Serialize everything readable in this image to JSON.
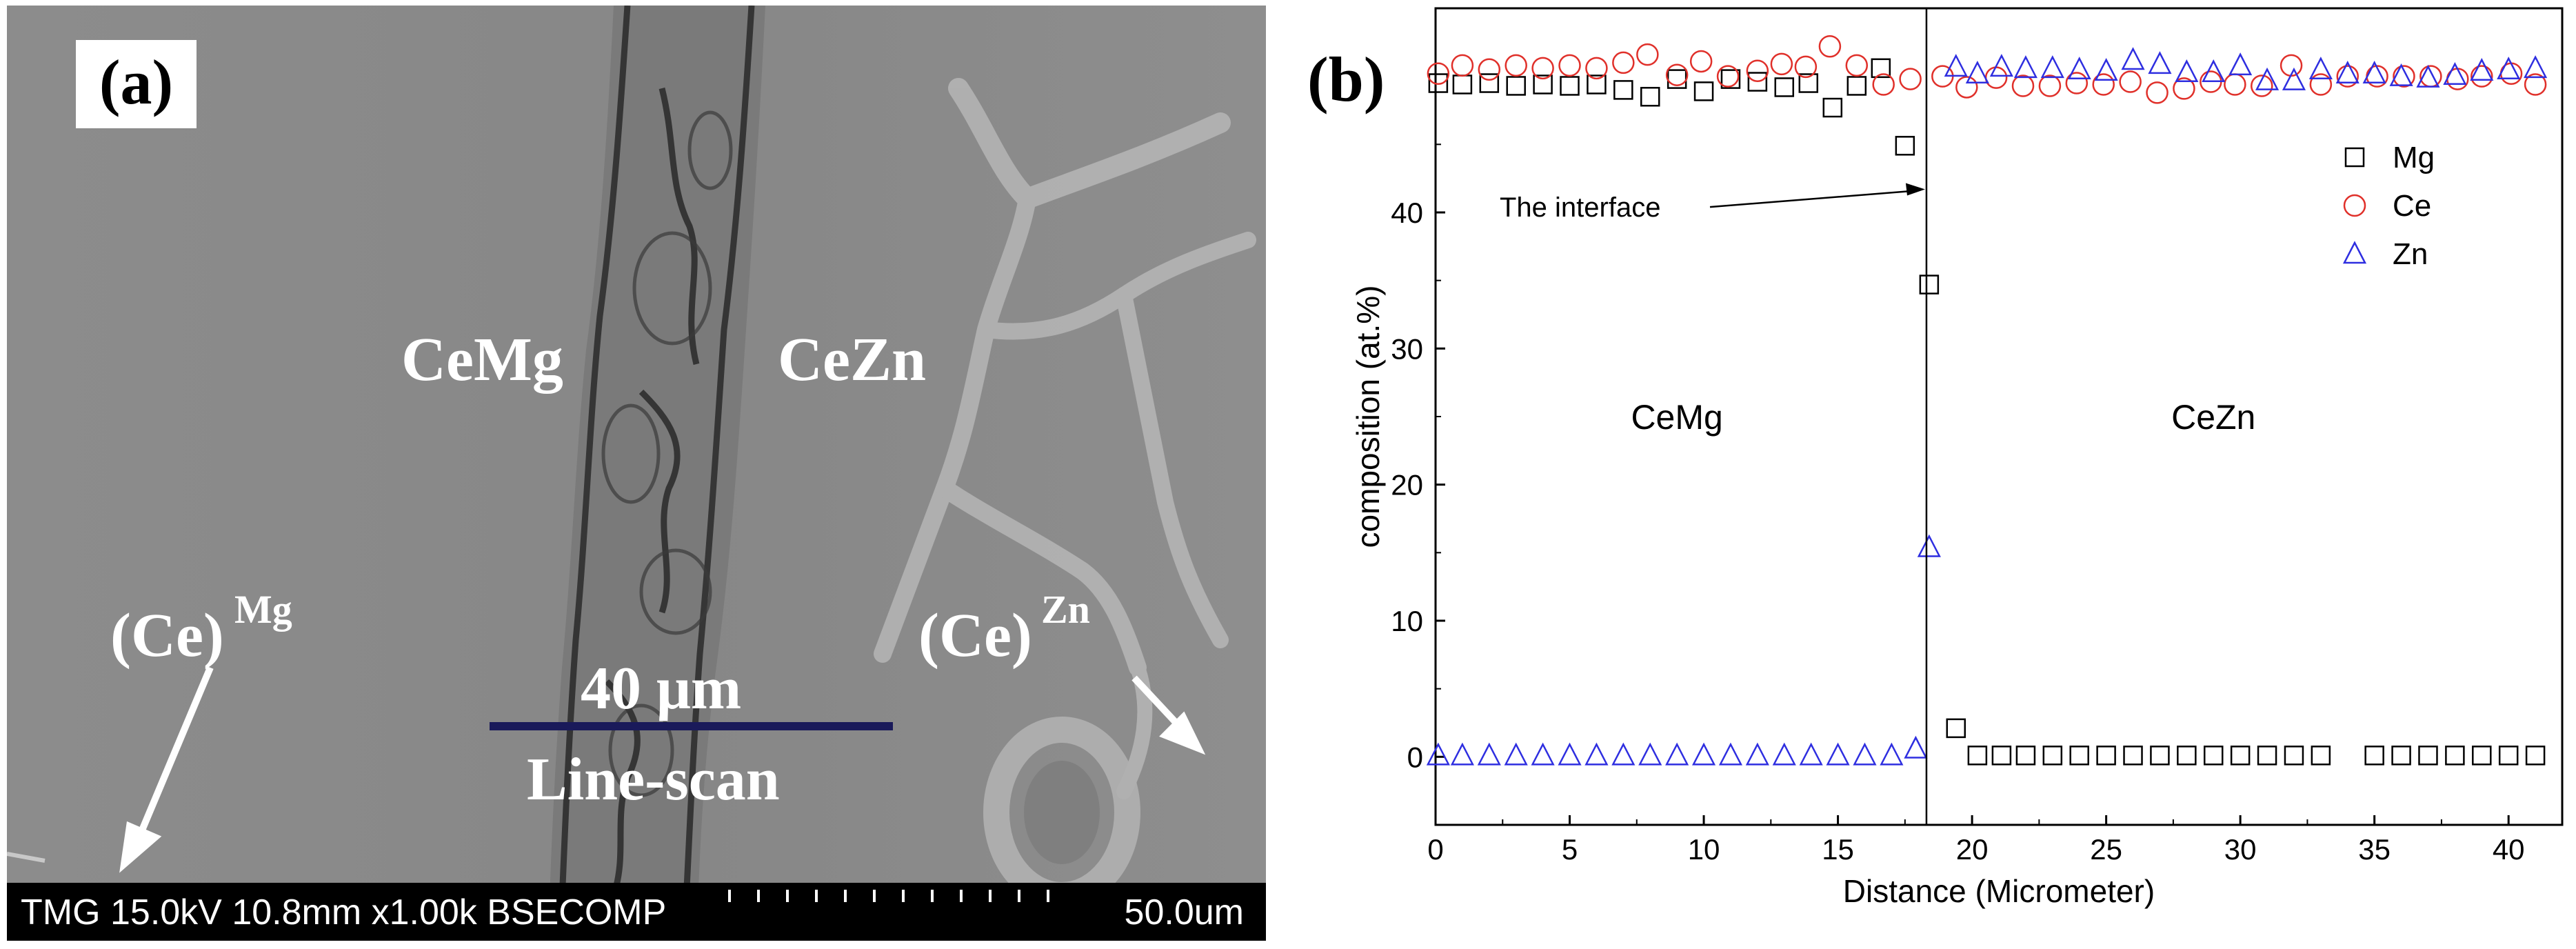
{
  "panel_a": {
    "label": "(a)",
    "phase_left": "CeMg",
    "phase_right": "CeZn",
    "sub_left": "(Ce)",
    "sub_left_sup": "Mg",
    "sub_right": "(Ce)",
    "sub_right_sup": "Zn",
    "scale_length": "40 μm",
    "scan_label": "Line-scan",
    "status_left": "TMG 15.0kV 10.8mm x1.00k BSECOMP",
    "status_right": "50.0um"
  },
  "panel_b": {
    "label": "(b)"
  },
  "chart_data": {
    "type": "scatter",
    "title": "",
    "xlabel": "Distance (Micrometer)",
    "ylabel": "composition (at.%)",
    "xlim": [
      0,
      42
    ],
    "ylim": [
      -5,
      55
    ],
    "xticks": [
      0,
      5,
      10,
      15,
      20,
      25,
      30,
      35,
      40
    ],
    "yticks": [
      0,
      10,
      20,
      30,
      40
    ],
    "grid": false,
    "legend_position": "top-right",
    "interface_x": 18.3,
    "annotations": [
      "The interface",
      "CeMg",
      "CeZn"
    ],
    "series": [
      {
        "name": "Mg",
        "marker": "square",
        "color": "#000000",
        "points": [
          [
            0.1,
            49.5
          ],
          [
            1.0,
            49.4
          ],
          [
            2.0,
            49.5
          ],
          [
            3.0,
            49.3
          ],
          [
            4.0,
            49.4
          ],
          [
            5.0,
            49.3
          ],
          [
            6.0,
            49.4
          ],
          [
            7.0,
            49.0
          ],
          [
            8.0,
            48.5
          ],
          [
            9.0,
            49.8
          ],
          [
            10.0,
            48.9
          ],
          [
            11.0,
            49.8
          ],
          [
            12.0,
            49.6
          ],
          [
            13.0,
            49.2
          ],
          [
            13.9,
            49.5
          ],
          [
            14.8,
            47.7
          ],
          [
            15.7,
            49.3
          ],
          [
            16.6,
            50.6
          ],
          [
            17.5,
            44.9
          ],
          [
            18.4,
            34.7
          ],
          [
            19.4,
            2.1
          ],
          [
            20.2,
            0.1
          ],
          [
            21.1,
            0.1
          ],
          [
            22.0,
            0.1
          ],
          [
            23.0,
            0.1
          ],
          [
            24.0,
            0.1
          ],
          [
            25.0,
            0.1
          ],
          [
            26.0,
            0.1
          ],
          [
            27.0,
            0.1
          ],
          [
            28.0,
            0.1
          ],
          [
            29.0,
            0.1
          ],
          [
            30.0,
            0.1
          ],
          [
            31.0,
            0.1
          ],
          [
            32.0,
            0.1
          ],
          [
            33.0,
            0.1
          ],
          [
            35.0,
            0.1
          ],
          [
            36.0,
            0.1
          ],
          [
            37.0,
            0.1
          ],
          [
            38.0,
            0.1
          ],
          [
            39.0,
            0.1
          ],
          [
            40.0,
            0.1
          ],
          [
            41.0,
            0.1
          ]
        ]
      },
      {
        "name": "Ce",
        "marker": "circle",
        "color": "#e0302a",
        "points": [
          [
            0.1,
            50.2
          ],
          [
            1.0,
            50.8
          ],
          [
            2.0,
            50.5
          ],
          [
            3.0,
            50.8
          ],
          [
            4.0,
            50.6
          ],
          [
            5.0,
            50.8
          ],
          [
            6.0,
            50.6
          ],
          [
            7.0,
            51.0
          ],
          [
            7.9,
            51.6
          ],
          [
            9.0,
            50.1
          ],
          [
            9.9,
            51.1
          ],
          [
            10.9,
            50.0
          ],
          [
            12.0,
            50.4
          ],
          [
            12.9,
            50.9
          ],
          [
            13.8,
            50.7
          ],
          [
            14.7,
            52.2
          ],
          [
            15.7,
            50.8
          ],
          [
            16.7,
            49.4
          ],
          [
            17.7,
            49.8
          ],
          [
            18.9,
            50.0
          ],
          [
            19.8,
            49.2
          ],
          [
            20.9,
            49.9
          ],
          [
            21.9,
            49.3
          ],
          [
            22.9,
            49.3
          ],
          [
            23.9,
            49.5
          ],
          [
            24.9,
            49.4
          ],
          [
            25.9,
            49.6
          ],
          [
            26.9,
            48.8
          ],
          [
            27.9,
            49.1
          ],
          [
            28.9,
            49.6
          ],
          [
            29.8,
            49.4
          ],
          [
            30.8,
            49.3
          ],
          [
            31.9,
            50.8
          ],
          [
            33.0,
            49.4
          ],
          [
            34.0,
            50.0
          ],
          [
            35.1,
            50.0
          ],
          [
            36.1,
            50.0
          ],
          [
            37.1,
            50.0
          ],
          [
            38.1,
            49.8
          ],
          [
            39.0,
            50.0
          ],
          [
            40.1,
            50.2
          ],
          [
            41.0,
            49.4
          ]
        ]
      },
      {
        "name": "Zn",
        "marker": "triangle",
        "color": "#2e2ee0",
        "points": [
          [
            0.1,
            0.1
          ],
          [
            1.0,
            0.1
          ],
          [
            2.0,
            0.1
          ],
          [
            3.0,
            0.1
          ],
          [
            4.0,
            0.1
          ],
          [
            5.0,
            0.1
          ],
          [
            6.0,
            0.1
          ],
          [
            7.0,
            0.1
          ],
          [
            8.0,
            0.1
          ],
          [
            9.0,
            0.1
          ],
          [
            10.0,
            0.1
          ],
          [
            11.0,
            0.1
          ],
          [
            12.0,
            0.1
          ],
          [
            13.0,
            0.1
          ],
          [
            14.0,
            0.1
          ],
          [
            15.0,
            0.1
          ],
          [
            16.0,
            0.1
          ],
          [
            17.0,
            0.1
          ],
          [
            17.9,
            0.6
          ],
          [
            18.4,
            15.4
          ],
          [
            19.4,
            50.7
          ],
          [
            20.2,
            50.2
          ],
          [
            21.1,
            50.7
          ],
          [
            22.0,
            50.6
          ],
          [
            23.0,
            50.6
          ],
          [
            24.0,
            50.5
          ],
          [
            25.0,
            50.4
          ],
          [
            26.0,
            51.2
          ],
          [
            27.0,
            50.9
          ],
          [
            28.0,
            50.3
          ],
          [
            29.0,
            50.3
          ],
          [
            30.0,
            50.8
          ],
          [
            31.0,
            49.7
          ],
          [
            32.0,
            49.7
          ],
          [
            33.0,
            50.5
          ],
          [
            34.0,
            50.2
          ],
          [
            35.0,
            50.2
          ],
          [
            36.0,
            50.0
          ],
          [
            37.0,
            49.9
          ],
          [
            38.0,
            50.1
          ],
          [
            39.0,
            50.4
          ],
          [
            40.0,
            50.5
          ],
          [
            41.0,
            50.6
          ]
        ]
      }
    ]
  }
}
